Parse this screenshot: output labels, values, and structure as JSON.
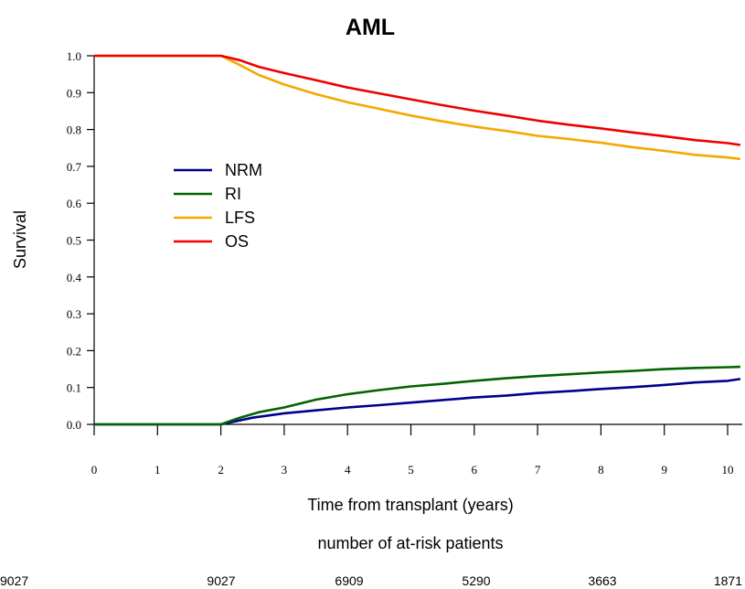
{
  "chart_data": {
    "type": "line",
    "title": "AML",
    "xlabel": "Time from transplant (years)",
    "ylabel": "Survival",
    "xlim": [
      0,
      10.2
    ],
    "ylim": [
      0,
      1
    ],
    "x_ticks": [
      0,
      1,
      2,
      3,
      4,
      5,
      6,
      7,
      8,
      9,
      10
    ],
    "y_ticks": [
      "0.0",
      "0.1",
      "0.2",
      "0.3",
      "0.4",
      "0.5",
      "0.6",
      "0.7",
      "0.8",
      "0.9",
      "1.0"
    ],
    "grid": false,
    "legend_position": "left",
    "series": [
      {
        "name": "NRM",
        "color": "#00008b",
        "points": [
          [
            0,
            0
          ],
          [
            2,
            0
          ],
          [
            2.5,
            0.018
          ],
          [
            3,
            0.03
          ],
          [
            3.5,
            0.038
          ],
          [
            4,
            0.046
          ],
          [
            4.5,
            0.052
          ],
          [
            5,
            0.059
          ],
          [
            5.5,
            0.066
          ],
          [
            6,
            0.073
          ],
          [
            6.5,
            0.078
          ],
          [
            7,
            0.085
          ],
          [
            7.5,
            0.09
          ],
          [
            8,
            0.096
          ],
          [
            8.5,
            0.101
          ],
          [
            9,
            0.107
          ],
          [
            9.5,
            0.114
          ],
          [
            10,
            0.118
          ],
          [
            10.2,
            0.123
          ]
        ]
      },
      {
        "name": "RI",
        "color": "#006400",
        "points": [
          [
            0,
            0
          ],
          [
            2,
            0
          ],
          [
            2.3,
            0.018
          ],
          [
            2.6,
            0.033
          ],
          [
            3,
            0.046
          ],
          [
            3.5,
            0.067
          ],
          [
            4,
            0.082
          ],
          [
            4.5,
            0.093
          ],
          [
            5,
            0.103
          ],
          [
            5.5,
            0.11
          ],
          [
            6,
            0.118
          ],
          [
            6.5,
            0.125
          ],
          [
            7,
            0.131
          ],
          [
            7.5,
            0.136
          ],
          [
            8,
            0.141
          ],
          [
            8.5,
            0.145
          ],
          [
            9,
            0.15
          ],
          [
            9.5,
            0.153
          ],
          [
            10,
            0.155
          ],
          [
            10.2,
            0.156
          ]
        ]
      },
      {
        "name": "LFS",
        "color": "#f5a800",
        "points": [
          [
            0,
            1
          ],
          [
            2,
            1
          ],
          [
            2.3,
            0.975
          ],
          [
            2.6,
            0.948
          ],
          [
            3,
            0.922
          ],
          [
            3.5,
            0.896
          ],
          [
            4,
            0.874
          ],
          [
            4.5,
            0.856
          ],
          [
            5,
            0.838
          ],
          [
            5.5,
            0.822
          ],
          [
            6,
            0.808
          ],
          [
            6.5,
            0.796
          ],
          [
            7,
            0.783
          ],
          [
            7.5,
            0.774
          ],
          [
            8,
            0.764
          ],
          [
            8.5,
            0.752
          ],
          [
            9,
            0.742
          ],
          [
            9.5,
            0.731
          ],
          [
            10,
            0.724
          ],
          [
            10.2,
            0.72
          ]
        ]
      },
      {
        "name": "OS",
        "color": "#ee0000",
        "points": [
          [
            0,
            1
          ],
          [
            2,
            1
          ],
          [
            2.3,
            0.988
          ],
          [
            2.6,
            0.97
          ],
          [
            3,
            0.953
          ],
          [
            3.5,
            0.934
          ],
          [
            4,
            0.914
          ],
          [
            4.5,
            0.898
          ],
          [
            5,
            0.882
          ],
          [
            5.5,
            0.866
          ],
          [
            6,
            0.851
          ],
          [
            6.5,
            0.838
          ],
          [
            7,
            0.824
          ],
          [
            7.5,
            0.813
          ],
          [
            8,
            0.803
          ],
          [
            8.5,
            0.792
          ],
          [
            9,
            0.782
          ],
          [
            9.5,
            0.771
          ],
          [
            10,
            0.763
          ],
          [
            10.2,
            0.758
          ]
        ]
      }
    ],
    "at_risk": {
      "label": "number of at-risk patients",
      "times": [
        0,
        2,
        4,
        6,
        8,
        10
      ],
      "counts": [
        "9027",
        "9027",
        "6909",
        "5290",
        "3663",
        "1871"
      ]
    }
  }
}
